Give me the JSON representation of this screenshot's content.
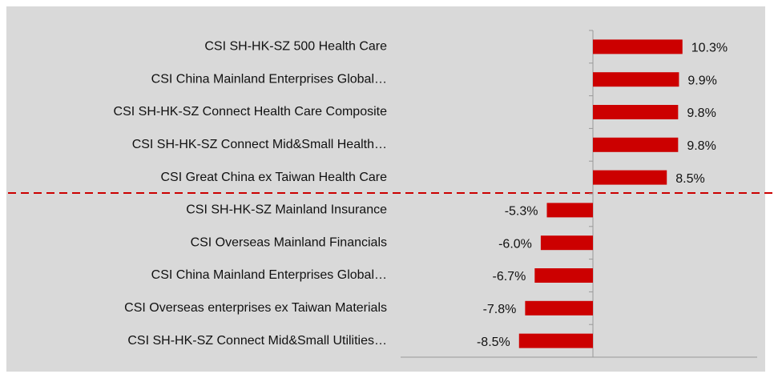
{
  "chart_data": {
    "type": "bar",
    "orientation": "horizontal",
    "categories": [
      "CSI SH-HK-SZ 500 Health Care",
      "CSI China Mainland Enterprises Global…",
      "CSI SH-HK-SZ Connect Health Care Composite",
      "CSI SH-HK-SZ Connect Mid&Small Health…",
      "CSI Great China ex Taiwan Health Care",
      "CSI SH-HK-SZ Mainland Insurance",
      "CSI Overseas Mainland Financials",
      "CSI China Mainland Enterprises Global…",
      "CSI Overseas enterprises ex Taiwan Materials",
      "CSI SH-HK-SZ Connect Mid&Small Utilities…"
    ],
    "values": [
      10.3,
      9.9,
      9.8,
      9.8,
      8.5,
      -5.3,
      -6.0,
      -6.7,
      -7.8,
      -8.5
    ],
    "value_labels": [
      "10.3%",
      "9.9%",
      "9.8%",
      "9.8%",
      "8.5%",
      "-5.3%",
      "-6.0%",
      "-6.7%",
      "-7.8%",
      "-8.5%"
    ],
    "color": "#cc0000"
  }
}
